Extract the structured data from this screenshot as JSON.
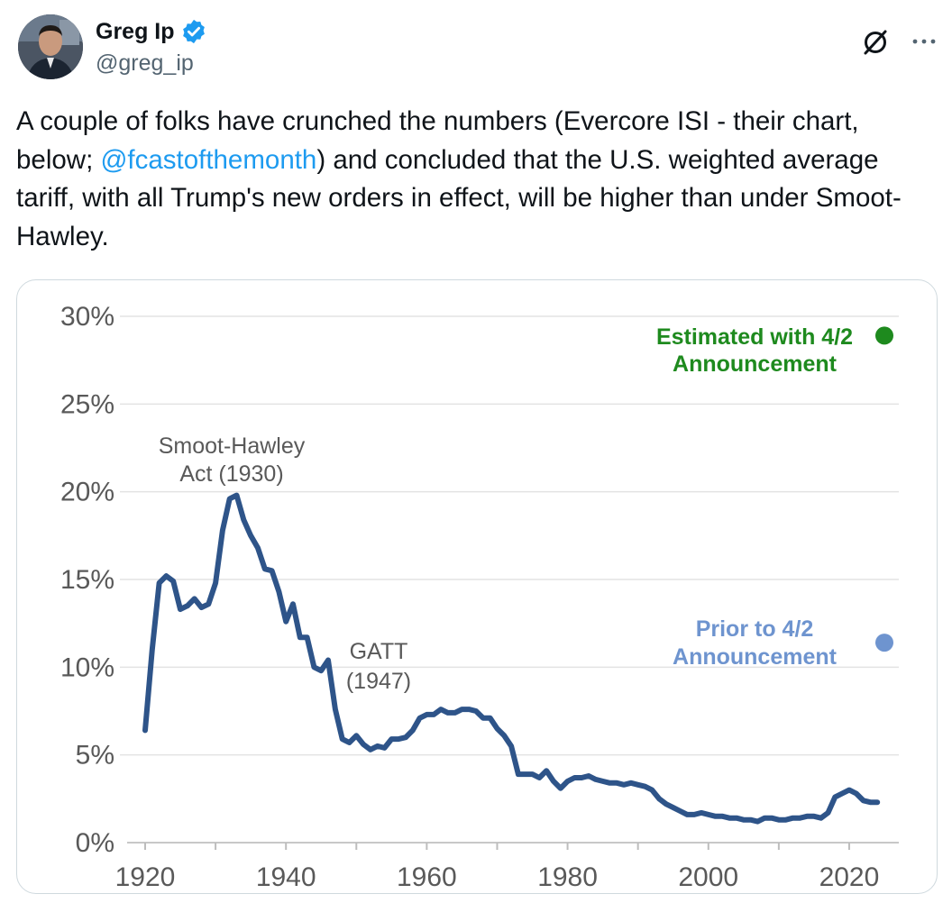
{
  "tweet": {
    "author_name": "Greg Ip",
    "handle": "@greg_ip",
    "text_part1": "A couple of folks have crunched the numbers (Evercore ISI - their chart, below; ",
    "mention": "@fcastofthemonth",
    "text_part2": ") and concluded that the U.S. weighted average tariff, with all Trump's new orders in effect, will be higher than under Smoot-Hawley."
  },
  "icons": {
    "verified": "verified-badge-icon",
    "grok": "grok-icon",
    "more": "more-icon"
  },
  "colors": {
    "line": "#2e5489",
    "estimated": "#1e8a1e",
    "prior": "#6e94cf",
    "mention": "#1d9bf0",
    "verified": "#1d9bf0"
  },
  "chart_data": {
    "type": "line",
    "title": "",
    "xlabel": "",
    "ylabel": "",
    "xlim": [
      1920,
      2025
    ],
    "ylim": [
      0,
      30
    ],
    "x_ticks": [
      1920,
      1940,
      1960,
      1980,
      2000,
      2020
    ],
    "x_tick_labels": [
      "1920",
      "1940",
      "1960",
      "1980",
      "2000",
      "2020"
    ],
    "y_ticks": [
      0,
      5,
      10,
      15,
      20,
      25,
      30
    ],
    "y_tick_labels": [
      "0%",
      "5%",
      "10%",
      "15%",
      "20%",
      "25%",
      "30%"
    ],
    "grid": true,
    "series": [
      {
        "x": [
          1920,
          1921,
          1922,
          1923,
          1924,
          1925,
          1926,
          1927,
          1928,
          1929,
          1930,
          1931,
          1932,
          1933,
          1934,
          1935,
          1936,
          1937,
          1938,
          1939,
          1940,
          1941,
          1942,
          1943,
          1944,
          1945,
          1946,
          1947,
          1948,
          1949,
          1950,
          1951,
          1952,
          1953,
          1954,
          1955,
          1956,
          1957,
          1958,
          1959,
          1960,
          1961,
          1962,
          1963,
          1964,
          1965,
          1966,
          1967,
          1968,
          1969,
          1970,
          1971,
          1972,
          1973,
          1974,
          1975,
          1976,
          1977,
          1978,
          1979,
          1980,
          1981,
          1982,
          1983,
          1984,
          1985,
          1986,
          1987,
          1988,
          1989,
          1990,
          1991,
          1992,
          1993,
          1994,
          1995,
          1996,
          1997,
          1998,
          1999,
          2000,
          2001,
          2002,
          2003,
          2004,
          2005,
          2006,
          2007,
          2008,
          2009,
          2010,
          2011,
          2012,
          2013,
          2014,
          2015,
          2016,
          2017,
          2018,
          2019,
          2020,
          2021,
          2022,
          2023,
          2024
        ],
        "y": [
          6.4,
          11.0,
          14.8,
          15.2,
          14.9,
          13.3,
          13.5,
          13.9,
          13.4,
          13.6,
          14.8,
          17.8,
          19.6,
          19.8,
          18.4,
          17.5,
          16.8,
          15.6,
          15.5,
          14.3,
          12.6,
          13.6,
          11.7,
          11.7,
          10.0,
          9.8,
          10.4,
          7.6,
          5.9,
          5.7,
          6.1,
          5.6,
          5.3,
          5.5,
          5.4,
          5.9,
          5.9,
          6.0,
          6.4,
          7.1,
          7.3,
          7.3,
          7.6,
          7.4,
          7.4,
          7.6,
          7.6,
          7.5,
          7.1,
          7.1,
          6.5,
          6.1,
          5.5,
          3.9,
          3.9,
          3.9,
          3.7,
          4.1,
          3.5,
          3.1,
          3.5,
          3.7,
          3.7,
          3.8,
          3.6,
          3.5,
          3.4,
          3.4,
          3.3,
          3.4,
          3.3,
          3.2,
          3.0,
          2.5,
          2.2,
          2.0,
          1.8,
          1.6,
          1.6,
          1.7,
          1.6,
          1.5,
          1.5,
          1.4,
          1.4,
          1.3,
          1.3,
          1.2,
          1.4,
          1.4,
          1.3,
          1.3,
          1.4,
          1.4,
          1.5,
          1.5,
          1.4,
          1.7,
          2.6,
          2.8,
          3.0,
          2.8,
          2.4,
          2.3,
          2.3
        ]
      }
    ],
    "points": [
      {
        "label": "Estimated with 4/2 Announcement",
        "line1": "Estimated with 4/2",
        "line2": "Announcement",
        "x": 2025,
        "y": 28.9,
        "color": "#1e8a1e"
      },
      {
        "label": "Prior to 4/2 Announcement",
        "line1": "Prior to 4/2",
        "line2": "Announcement",
        "x": 2025,
        "y": 11.4,
        "color": "#6e94cf"
      }
    ],
    "annotations": [
      {
        "line1": "Smoot-Hawley",
        "line2": "Act (1930)"
      },
      {
        "line1": "GATT",
        "line2": "(1947)"
      }
    ]
  }
}
